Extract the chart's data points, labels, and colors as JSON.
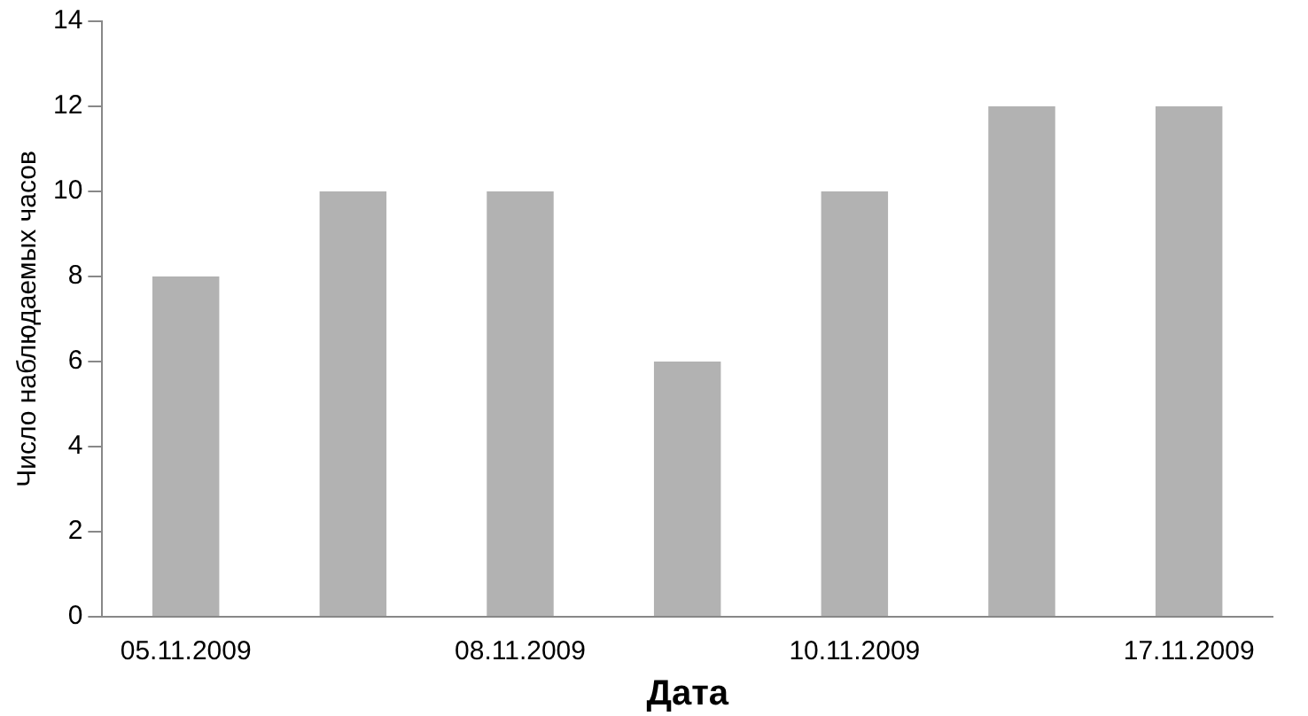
{
  "chart_data": {
    "type": "bar",
    "xlabel": "Дата",
    "ylabel": "Число наблюдаемых часов",
    "categories": [
      "05.11.2009",
      null,
      "08.11.2009",
      null,
      "10.11.2009",
      null,
      "17.11.2009"
    ],
    "values": [
      8,
      10,
      10,
      6,
      10,
      12,
      12
    ],
    "color": "#b2b2b2",
    "ylim": [
      0,
      14
    ],
    "yticks": [
      0,
      2,
      4,
      6,
      8,
      10,
      12,
      14
    ],
    "grid": false,
    "legend": false
  }
}
